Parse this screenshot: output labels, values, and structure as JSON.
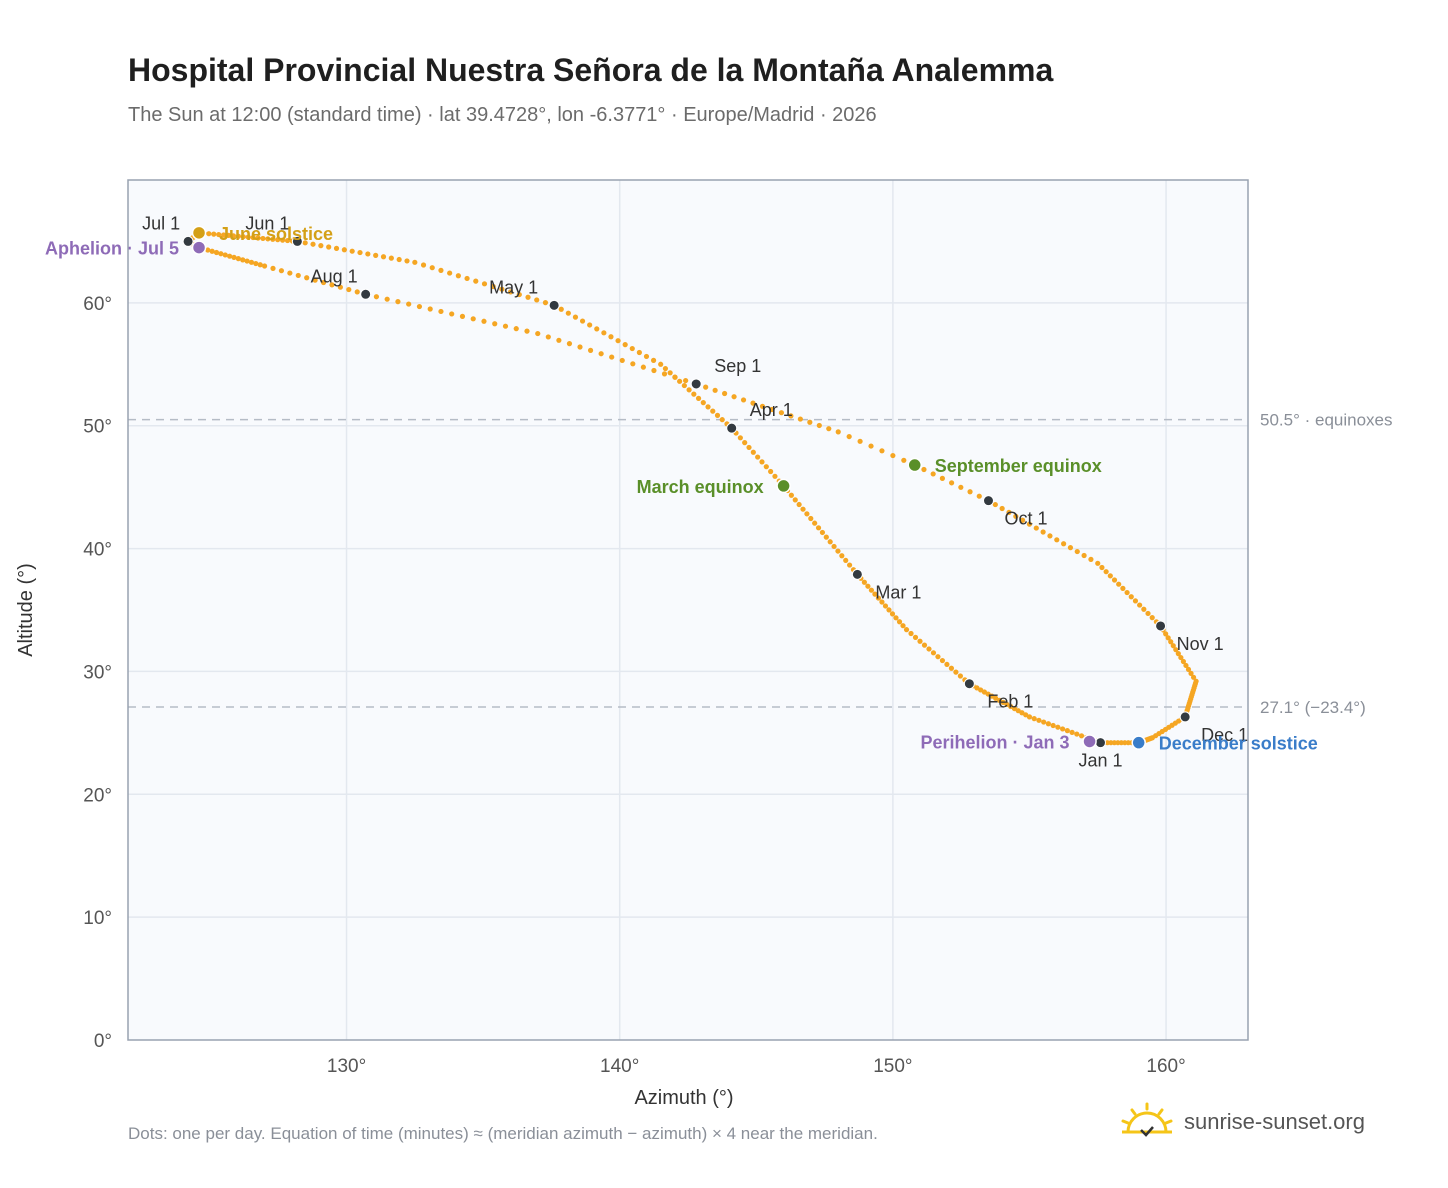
{
  "title": "Hospital Provincial Nuestra Señora de la Montaña Analemma",
  "subtitle": "The Sun at 12:00 (standard time) · lat 39.4728°, lon -6.3771° · Europe/Madrid · 2026",
  "footnote": "Dots: one per day. Equation of time (minutes) ≈ (meridian azimuth − azimuth) × 4 near the meridian.",
  "brand": {
    "name": "sunrise-sunset.org",
    "icon": "sun-logo-icon"
  },
  "colors": {
    "path": "#f5a623",
    "month": "#333a40",
    "equinox": "#5a8f29",
    "june": "#d4a017",
    "december": "#3a7dc9",
    "apsis": "#8e6bb7",
    "plot_bg": "#f8fafd",
    "grid": "#e3e8ef",
    "ref_line": "#b5bcc6"
  },
  "chart_data": {
    "type": "scatter",
    "xlabel": "Azimuth (°)",
    "ylabel": "Altitude (°)",
    "xlim": [
      122,
      163
    ],
    "ylim": [
      0,
      70
    ],
    "xticks": [
      130,
      140,
      150,
      160
    ],
    "xtick_labels": [
      "130°",
      "140°",
      "150°",
      "160°"
    ],
    "yticks": [
      0,
      10,
      20,
      30,
      40,
      50,
      60
    ],
    "ytick_labels": [
      "0°",
      "10°",
      "20°",
      "30°",
      "40°",
      "50°",
      "60°"
    ],
    "grid": true,
    "reference_lines": [
      {
        "y": 50.5,
        "label": "50.5° · equinoxes"
      },
      {
        "y": 27.1,
        "label": "27.1° (−23.4°)"
      }
    ],
    "path_anchors": [
      {
        "d": 0,
        "az": 157.6,
        "alt": 24.2
      },
      {
        "d": 15,
        "az": 155.0,
        "alt": 26.3
      },
      {
        "d": 31,
        "az": 152.8,
        "alt": 29.0
      },
      {
        "d": 45,
        "az": 150.5,
        "alt": 33.4
      },
      {
        "d": 59,
        "az": 148.7,
        "alt": 37.9
      },
      {
        "d": 78,
        "az": 146.0,
        "alt": 45.1
      },
      {
        "d": 90,
        "az": 144.1,
        "alt": 49.8
      },
      {
        "d": 105,
        "az": 141.5,
        "alt": 55.0
      },
      {
        "d": 120,
        "az": 137.6,
        "alt": 59.8
      },
      {
        "d": 136,
        "az": 132.5,
        "alt": 63.3
      },
      {
        "d": 151,
        "az": 128.2,
        "alt": 65.0
      },
      {
        "d": 171,
        "az": 124.6,
        "alt": 65.7
      },
      {
        "d": 181,
        "az": 124.2,
        "alt": 65.0
      },
      {
        "d": 185,
        "az": 124.6,
        "alt": 64.5
      },
      {
        "d": 200,
        "az": 127.0,
        "alt": 63.0
      },
      {
        "d": 212,
        "az": 130.7,
        "alt": 60.7
      },
      {
        "d": 228,
        "az": 137.0,
        "alt": 57.5
      },
      {
        "d": 243,
        "az": 142.8,
        "alt": 53.4
      },
      {
        "d": 258,
        "az": 148.0,
        "alt": 49.5
      },
      {
        "d": 265,
        "az": 150.8,
        "alt": 46.8
      },
      {
        "d": 273,
        "az": 153.5,
        "alt": 43.9
      },
      {
        "d": 289,
        "az": 157.5,
        "alt": 38.8
      },
      {
        "d": 304,
        "az": 159.8,
        "alt": 33.7
      },
      {
        "d": 318,
        "az": 161.1,
        "alt": 29.2
      },
      {
        "d": 334,
        "az": 160.7,
        "alt": 26.3
      },
      {
        "d": 344,
        "az": 159.5,
        "alt": 24.6
      },
      {
        "d": 354,
        "az": 159.0,
        "alt": 24.2
      },
      {
        "d": 365,
        "az": 157.6,
        "alt": 24.2
      }
    ],
    "month_markers": [
      {
        "label": "Jan 1",
        "az": 157.6,
        "alt": 24.2,
        "pos": "below"
      },
      {
        "label": "Feb 1",
        "az": 152.8,
        "alt": 29.0,
        "pos": "right"
      },
      {
        "label": "Mar 1",
        "az": 148.7,
        "alt": 37.9,
        "pos": "right"
      },
      {
        "label": "Apr 1",
        "az": 144.1,
        "alt": 49.8,
        "pos": "above-right"
      },
      {
        "label": "May 1",
        "az": 137.6,
        "alt": 59.8,
        "pos": "left"
      },
      {
        "label": "Jun 1",
        "az": 128.2,
        "alt": 65.0,
        "pos": "above-left"
      },
      {
        "label": "Jul 1",
        "az": 124.2,
        "alt": 65.0,
        "pos": "above-left"
      },
      {
        "label": "Aug 1",
        "az": 130.7,
        "alt": 60.7,
        "pos": "above-left"
      },
      {
        "label": "Sep 1",
        "az": 142.8,
        "alt": 53.4,
        "pos": "above-right"
      },
      {
        "label": "Oct 1",
        "az": 153.5,
        "alt": 43.9,
        "pos": "right-below"
      },
      {
        "label": "Nov 1",
        "az": 159.8,
        "alt": 33.7,
        "pos": "right-below"
      },
      {
        "label": "Dec 1",
        "az": 160.7,
        "alt": 26.3,
        "pos": "right-below"
      }
    ],
    "events": [
      {
        "label": "March equinox",
        "az": 146.0,
        "alt": 45.1,
        "color": "#5a8f29",
        "side": "left"
      },
      {
        "label": "September equinox",
        "az": 150.8,
        "alt": 46.8,
        "color": "#5a8f29",
        "side": "right"
      },
      {
        "label": "June solstice",
        "az": 124.6,
        "alt": 65.7,
        "color": "#d4a017",
        "side": "right"
      },
      {
        "label": "December solstice",
        "az": 159.0,
        "alt": 24.2,
        "color": "#3a7dc9",
        "side": "right"
      },
      {
        "label": "Aphelion · Jul 5",
        "az": 124.6,
        "alt": 64.5,
        "color": "#8e6bb7",
        "side": "left"
      },
      {
        "label": "Perihelion · Jan 3",
        "az": 157.2,
        "alt": 24.3,
        "color": "#8e6bb7",
        "side": "left"
      }
    ]
  }
}
